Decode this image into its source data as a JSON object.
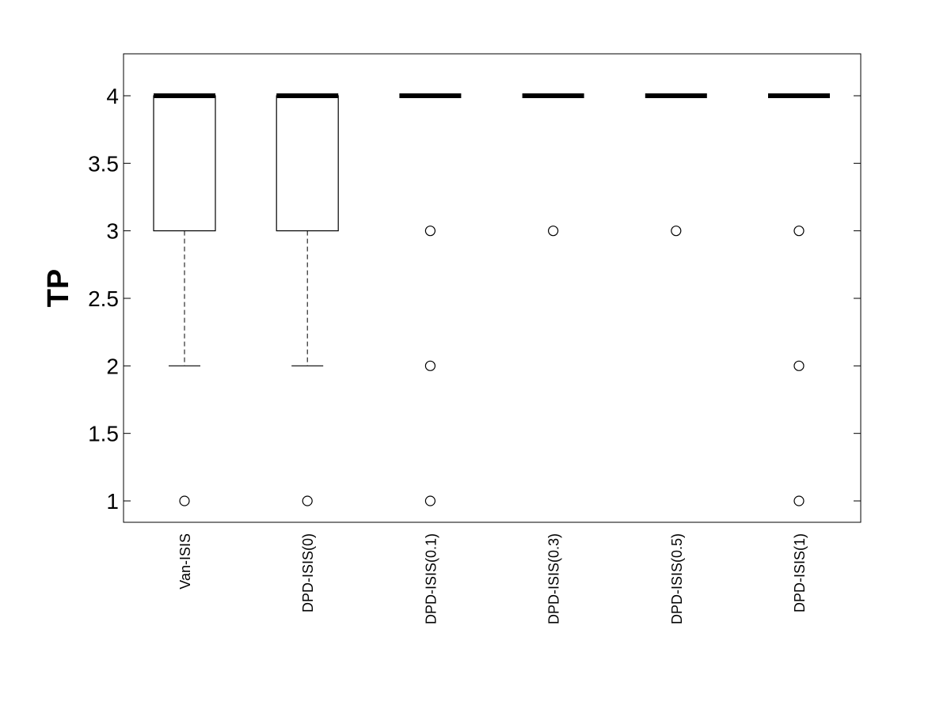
{
  "chart_data": {
    "type": "box",
    "title": "",
    "xlabel": "",
    "ylabel": "TP",
    "ylim": [
      0.84,
      4.31
    ],
    "yticks": [
      1,
      1.5,
      2,
      2.5,
      3,
      3.5,
      4
    ],
    "ytick_labels": [
      "1",
      "1.5",
      "2",
      "2.5",
      "3",
      "3.5",
      "4"
    ],
    "grid": false,
    "categories": [
      "Van-ISIS",
      "DPD-ISIS(0)",
      "DPD-ISIS(0.1)",
      "DPD-ISIS(0.3)",
      "DPD-ISIS(0.5)",
      "DPD-ISIS(1)"
    ],
    "boxes": [
      {
        "q1": 3,
        "median": 4,
        "q3": 4,
        "whisker_low": 2,
        "whisker_high": 4,
        "outliers": [
          1
        ]
      },
      {
        "q1": 3,
        "median": 4,
        "q3": 4,
        "whisker_low": 2,
        "whisker_high": 4,
        "outliers": [
          1
        ]
      },
      {
        "q1": 4,
        "median": 4,
        "q3": 4,
        "whisker_low": 4,
        "whisker_high": 4,
        "outliers": [
          3,
          2,
          1
        ]
      },
      {
        "q1": 4,
        "median": 4,
        "q3": 4,
        "whisker_low": 4,
        "whisker_high": 4,
        "outliers": [
          3
        ]
      },
      {
        "q1": 4,
        "median": 4,
        "q3": 4,
        "whisker_low": 4,
        "whisker_high": 4,
        "outliers": [
          3
        ]
      },
      {
        "q1": 4,
        "median": 4,
        "q3": 4,
        "whisker_low": 4,
        "whisker_high": 4,
        "outliers": [
          3,
          2,
          1
        ]
      }
    ]
  }
}
